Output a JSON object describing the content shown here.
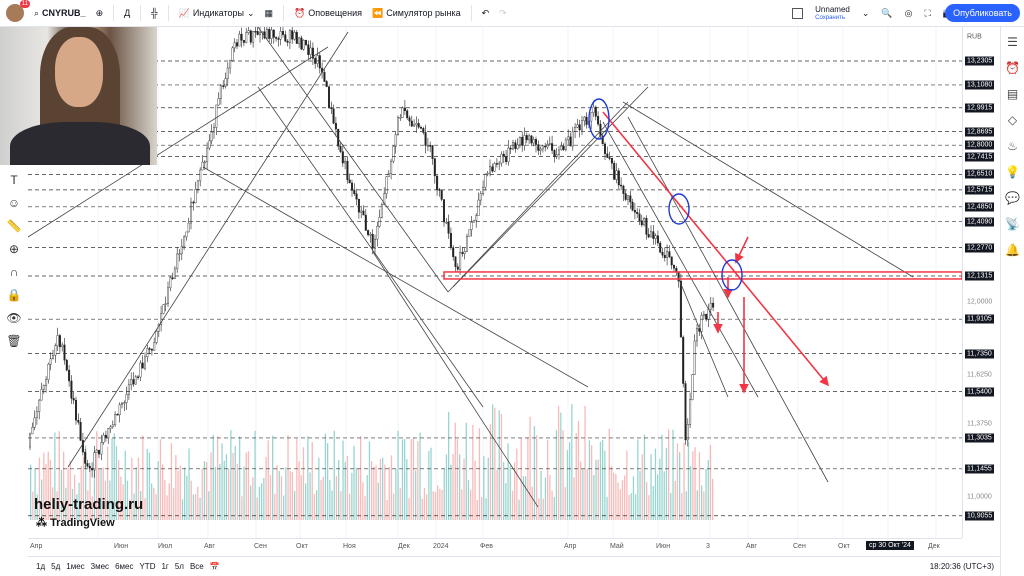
{
  "header": {
    "notifications": "11",
    "symbol": "CNYRUB_",
    "interval": "Д",
    "indicators": "Индикаторы",
    "alerts": "Оповещения",
    "replay": "Симулятор рынка",
    "layout_name": "Unnamed",
    "save": "Сохранить",
    "publish": "Опубликовать"
  },
  "price_axis": {
    "currency": "RUB",
    "marked_levels": [
      "13,2305",
      "13,1080",
      "12,9915",
      "12,8695",
      "12,8000",
      "12,7415",
      "12,6510",
      "12,5715",
      "12,4850",
      "12,4090",
      "12,2770",
      "12,1315",
      "11,9105",
      "11,7350",
      "11,5400",
      "11,3035",
      "11,1455",
      "10,9055"
    ],
    "grid_labels": [
      "12,0000",
      "11,6250",
      "11,3750",
      "11,0000"
    ]
  },
  "time_axis": {
    "labels": [
      "Апр",
      "Июн",
      "Июл",
      "Авг",
      "Сен",
      "Окт",
      "Ноя",
      "Дек",
      "2024",
      "Фев",
      "Апр",
      "Май",
      "Июн",
      "3",
      "Авг",
      "Сен",
      "Окт",
      "Дек"
    ],
    "cursor_label": "ср 30 Окт '24"
  },
  "bottom": {
    "ranges": [
      "1д",
      "5д",
      "1мес",
      "3мес",
      "6мес",
      "YTD",
      "1г",
      "5л",
      "Все"
    ],
    "clock": "18:20:36 (UTC+3)"
  },
  "watermark": {
    "site": "heliy-trading.ru",
    "brand": "TradingView"
  },
  "colors": {
    "accent": "#2962ff",
    "annotation_red": "#f23645",
    "circle_blue": "#1e3ad6",
    "up_volume": "#80cbc4",
    "down_volume": "#f7a9a7"
  }
}
